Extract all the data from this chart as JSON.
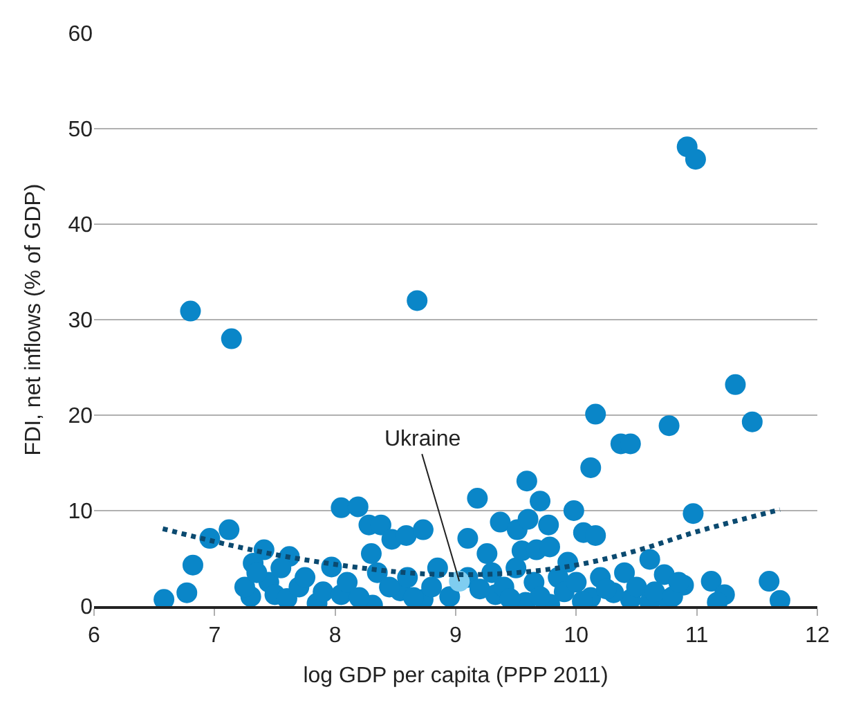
{
  "chart_data": {
    "type": "scatter",
    "xlabel": "log GDP per capita (PPP 2011)",
    "ylabel": "FDI, net inflows (% of GDP)",
    "xlim": [
      6,
      12
    ],
    "xticks": [
      6,
      7,
      8,
      9,
      10,
      11,
      12
    ],
    "ylim": [
      0,
      60
    ],
    "yticks": [
      0,
      10,
      20,
      30,
      40,
      50,
      60
    ],
    "grid": "y",
    "marker": "circle",
    "annotations": [
      {
        "text": "Ukraine",
        "x": 9.03,
        "y": 2.6
      }
    ],
    "series": [
      {
        "color": "#0a86c8",
        "x": [
          6.8,
          7.14,
          8.68,
          10.92,
          10.99,
          11.32,
          11.46,
          10.77,
          10.16,
          10.37,
          10.45,
          10.12,
          10.97,
          9.59,
          9.18,
          9.7,
          9.98,
          8.05,
          6.58,
          6.77,
          6.82,
          6.96,
          7.12,
          7.41,
          7.62,
          7.32,
          7.85,
          7.97,
          8.19,
          8.28,
          8.38,
          8.47,
          8.3,
          8.59,
          8.73,
          8.31,
          8.73,
          8.54,
          9.1,
          9.26,
          9.37,
          9.51,
          9.6,
          9.77,
          10.06,
          10.16,
          9.55,
          9.67,
          9.78,
          9.93,
          10.61,
          10.73,
          10.89,
          11.12,
          11.23,
          11.17,
          11.6,
          11.69,
          10.45,
          10.61,
          10.76,
          9.78,
          9.58,
          9.33,
          10.12,
          10.31,
          7.3,
          7.45,
          7.5,
          7.6,
          7.7,
          7.75,
          7.9,
          8.05,
          8.1,
          8.2,
          8.35,
          8.45,
          8.6,
          8.65,
          8.8,
          8.85,
          8.95,
          9.1,
          9.2,
          9.3,
          9.4,
          9.45,
          9.5,
          9.65,
          9.7,
          9.85,
          9.9,
          10.0,
          10.05,
          10.2,
          10.25,
          10.4,
          10.5,
          10.65,
          10.8,
          10.85,
          7.25,
          7.35,
          7.55
        ],
        "values": [
          30.9,
          28.0,
          32.0,
          48.1,
          46.8,
          23.2,
          19.3,
          18.9,
          20.1,
          17.0,
          17.0,
          14.5,
          9.7,
          13.1,
          11.3,
          11.0,
          10.0,
          10.3,
          0.7,
          1.4,
          4.3,
          7.1,
          8.0,
          5.9,
          5.2,
          4.5,
          0.3,
          4.1,
          10.4,
          8.5,
          8.5,
          7.0,
          5.5,
          7.4,
          8.0,
          0.1,
          0.7,
          1.6,
          7.1,
          5.5,
          8.8,
          8.0,
          9.1,
          8.5,
          7.7,
          7.4,
          5.8,
          5.9,
          6.2,
          4.6,
          4.9,
          3.3,
          2.2,
          2.6,
          1.2,
          0.4,
          2.6,
          0.6,
          0.7,
          0.4,
          0.7,
          0.2,
          0.4,
          1.2,
          0.9,
          1.4,
          1.0,
          2.5,
          1.2,
          0.8,
          2.0,
          3.0,
          1.5,
          1.2,
          2.5,
          0.9,
          3.5,
          2.0,
          3.0,
          0.9,
          2.0,
          4.0,
          1.0,
          3.0,
          1.8,
          3.5,
          2.0,
          0.8,
          4.0,
          2.5,
          1.0,
          3.0,
          1.5,
          2.5,
          0.5,
          3.0,
          1.8,
          3.5,
          2.0,
          1.5,
          1.0,
          2.5,
          2.0,
          3.5,
          4.0
        ]
      },
      {
        "color": "#7fcdf0",
        "x": [
          9.03
        ],
        "values": [
          2.6
        ]
      },
      {
        "type": "line",
        "line_style": "dotted",
        "marker": "none",
        "color": "#0b4a70",
        "x": [
          6.57,
          7.5,
          8.5,
          9.0,
          9.5,
          10.0,
          10.5,
          11.0,
          11.69
        ],
        "values": [
          8.1,
          5.4,
          3.6,
          3.3,
          3.5,
          4.3,
          5.8,
          7.8,
          10.1
        ]
      }
    ]
  }
}
